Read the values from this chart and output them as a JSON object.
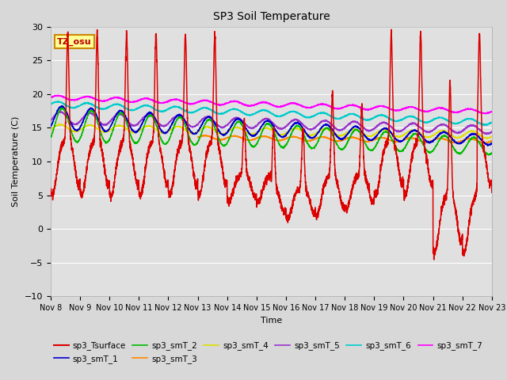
{
  "title": "SP3 Soil Temperature",
  "ylabel": "Soil Temperature (C)",
  "xlabel": "Time",
  "annotation": "TZ_osu",
  "ylim": [
    -10,
    30
  ],
  "yticks": [
    -10,
    -5,
    0,
    5,
    10,
    15,
    20,
    25,
    30
  ],
  "xtick_labels": [
    "Nov 8",
    "Nov 9",
    "Nov 10",
    "Nov 11",
    "Nov 12",
    "Nov 13",
    "Nov 14",
    "Nov 15",
    "Nov 16",
    "Nov 17",
    "Nov 18",
    "Nov 19",
    "Nov 20",
    "Nov 21",
    "Nov 22",
    "Nov 23"
  ],
  "background_color": "#e0e0e0",
  "grid_color": "white",
  "fig_bg": "#d8d8d8",
  "series_colors": {
    "sp3_Tsurface": "#dd0000",
    "sp3_smT_1": "#0000cc",
    "sp3_smT_2": "#00bb00",
    "sp3_smT_3": "#ff8800",
    "sp3_smT_4": "#dddd00",
    "sp3_smT_5": "#9933cc",
    "sp3_smT_6": "#00cccc",
    "sp3_smT_7": "#ff00ff"
  }
}
